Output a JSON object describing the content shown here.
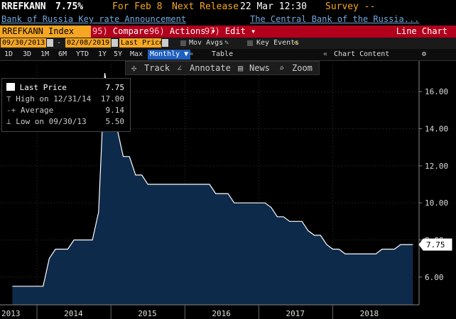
{
  "header": {
    "ticker_short": "RREFKANN",
    "last_value": "7.75%",
    "for_label": "For Feb 8",
    "next_release_label": "Next Release",
    "next_release_value": "22 Mar 12:30",
    "survey_label": "Survey --",
    "description": "Bank of Russia Key rate Announcement",
    "source": "The Central Bank of the Russia..."
  },
  "function_bar": {
    "ticker": "RREFKANN Index",
    "buttons": [
      {
        "num": "95)",
        "label": "Compare"
      },
      {
        "num": "96)",
        "label": "Actions ▾"
      },
      {
        "num": "97)",
        "label": "Edit ▾"
      }
    ],
    "chart_type": "Line Chart"
  },
  "date_row": {
    "start_date": "09/30/2013",
    "dash": "-",
    "end_date": "02/08/2019",
    "field": "Last Price",
    "mov_avgs": "Mov Avgs",
    "key_events": "Key Events"
  },
  "period_row": {
    "periods": [
      "1D",
      "3D",
      "1M",
      "6M",
      "YTD",
      "1Y",
      "5Y",
      "Max"
    ],
    "selected": "Monthly ▼",
    "table": "Table",
    "chart_content": "Chart Content"
  },
  "toolbar": {
    "track": "Track",
    "annotate": "Annotate",
    "news": "News",
    "zoom": "Zoom"
  },
  "legend": {
    "last_price_label": "Last Price",
    "last_price_value": "7.75",
    "high_label": "High on 12/31/14",
    "high_value": "17.00",
    "average_label": "Average",
    "average_value": "9.14",
    "low_label": "Low on 09/30/13",
    "low_value": "5.50"
  },
  "colors": {
    "accent": "#f5a623",
    "bar": "#b2001c",
    "fill": "#0e2a4a",
    "line": "#ffffff"
  },
  "chart_data": {
    "type": "area",
    "x_start": "2013-09",
    "x_end": "2019-02",
    "ylim": [
      4.5,
      17.5
    ],
    "yticks": [
      6,
      8,
      10,
      12,
      14,
      16
    ],
    "ytick_labels": [
      "6.00",
      "8.00",
      "10.00",
      "12.00",
      "14.00",
      "16.00"
    ],
    "xtick_labels": [
      "2013",
      "2014",
      "2015",
      "2016",
      "2017",
      "2018"
    ],
    "xtick_years": [
      2013,
      2014,
      2015,
      2016,
      2017,
      2018
    ],
    "last_value_label": "7.75",
    "last_value": 7.75,
    "series": [
      {
        "points": [
          [
            "2013-09",
            5.5
          ],
          [
            "2013-12",
            5.5
          ],
          [
            "2014-02",
            5.5
          ],
          [
            "2014-03",
            7.0
          ],
          [
            "2014-04",
            7.5
          ],
          [
            "2014-05",
            7.5
          ],
          [
            "2014-06",
            7.5
          ],
          [
            "2014-07",
            8.0
          ],
          [
            "2014-08",
            8.0
          ],
          [
            "2014-09",
            8.0
          ],
          [
            "2014-10",
            8.0
          ],
          [
            "2014-11",
            9.5
          ],
          [
            "2014-12",
            17.0
          ],
          [
            "2015-01",
            15.0
          ],
          [
            "2015-02",
            14.0
          ],
          [
            "2015-03",
            12.5
          ],
          [
            "2015-04",
            12.5
          ],
          [
            "2015-05",
            11.5
          ],
          [
            "2015-06",
            11.5
          ],
          [
            "2015-07",
            11.0
          ],
          [
            "2015-08",
            11.0
          ],
          [
            "2015-12",
            11.0
          ],
          [
            "2016-05",
            11.0
          ],
          [
            "2016-06",
            10.5
          ],
          [
            "2016-08",
            10.5
          ],
          [
            "2016-09",
            10.0
          ],
          [
            "2016-12",
            10.0
          ],
          [
            "2017-02",
            10.0
          ],
          [
            "2017-03",
            9.75
          ],
          [
            "2017-04",
            9.25
          ],
          [
            "2017-05",
            9.25
          ],
          [
            "2017-06",
            9.0
          ],
          [
            "2017-08",
            9.0
          ],
          [
            "2017-09",
            8.5
          ],
          [
            "2017-10",
            8.25
          ],
          [
            "2017-11",
            8.25
          ],
          [
            "2017-12",
            7.75
          ],
          [
            "2018-01",
            7.5
          ],
          [
            "2018-02",
            7.5
          ],
          [
            "2018-03",
            7.25
          ],
          [
            "2018-06",
            7.25
          ],
          [
            "2018-08",
            7.25
          ],
          [
            "2018-09",
            7.5
          ],
          [
            "2018-11",
            7.5
          ],
          [
            "2018-12",
            7.75
          ],
          [
            "2019-02",
            7.75
          ]
        ]
      }
    ]
  }
}
